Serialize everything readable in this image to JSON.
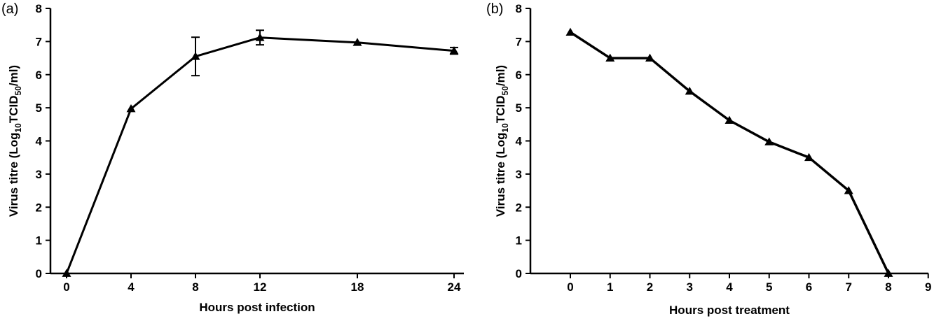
{
  "panels": [
    {
      "label": "(a)"
    },
    {
      "label": "(b)"
    }
  ],
  "chart_data": [
    {
      "type": "line",
      "panel": "(a)",
      "xlabel": "Hours post infection",
      "ylabel_main": "Virus titre (Log",
      "ylabel_sub1": "10",
      "ylabel_mid": "TCID",
      "ylabel_sub2": "50",
      "ylabel_end": "/ml)",
      "x_tick_labels": [
        "0",
        "4",
        "8",
        "12",
        "18",
        "24"
      ],
      "y_ticks": [
        0,
        1,
        2,
        3,
        4,
        5,
        6,
        7,
        8
      ],
      "ylim": [
        0,
        8
      ],
      "marker": "triangle",
      "series": [
        {
          "points": [
            {
              "x": "0",
              "y": 0,
              "err": 0
            },
            {
              "x": "4",
              "y": 4.97,
              "err": 0
            },
            {
              "x": "8",
              "y": 6.55,
              "err": 0.58
            },
            {
              "x": "12",
              "y": 7.12,
              "err": 0.22
            },
            {
              "x": "18",
              "y": 6.97,
              "err": 0
            },
            {
              "x": "24",
              "y": 6.72,
              "err": 0.1
            }
          ]
        }
      ]
    },
    {
      "type": "line",
      "panel": "(b)",
      "xlabel": "Hours post treatment",
      "ylabel_main": "Virus titre (Log",
      "ylabel_sub1": "10",
      "ylabel_mid": "TCID",
      "ylabel_sub2": "50",
      "ylabel_end": "/ml)",
      "x_ticks": [
        0,
        1,
        2,
        3,
        4,
        5,
        6,
        7,
        8,
        9
      ],
      "xlim": [
        -1,
        9
      ],
      "y_ticks": [
        0,
        1,
        2,
        3,
        4,
        5,
        6,
        7,
        8
      ],
      "ylim": [
        0,
        8
      ],
      "marker": "triangle",
      "series": [
        {
          "points": [
            {
              "x": 0,
              "y": 7.28
            },
            {
              "x": 1,
              "y": 6.5
            },
            {
              "x": 2,
              "y": 6.5
            },
            {
              "x": 3,
              "y": 5.5
            },
            {
              "x": 4,
              "y": 4.62
            },
            {
              "x": 5,
              "y": 3.97
            },
            {
              "x": 6,
              "y": 3.5
            },
            {
              "x": 7,
              "y": 2.5
            },
            {
              "x": 8,
              "y": 0
            }
          ]
        }
      ]
    }
  ]
}
